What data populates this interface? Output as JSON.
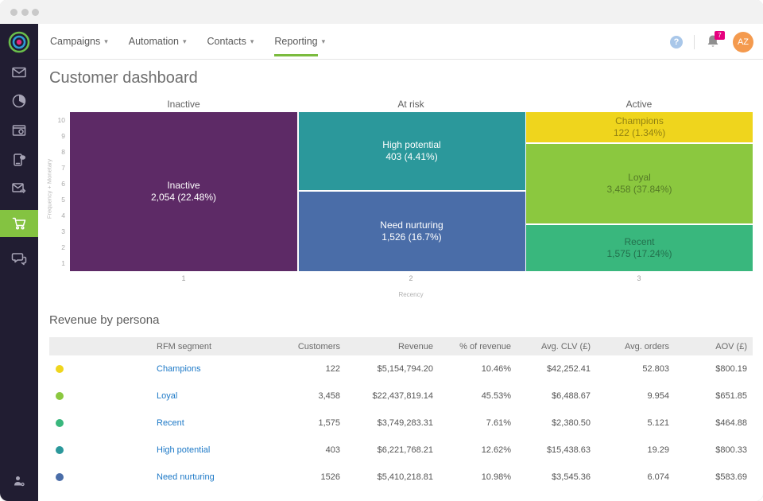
{
  "window": {
    "title_dots": 3
  },
  "sidebar": {
    "icons": [
      "brand-logo",
      "email-icon",
      "reports-icon",
      "pages-icon",
      "sms-icon",
      "transactional-email-icon",
      "commerce-icon",
      "chat-icon",
      "account-settings-icon"
    ],
    "active_icon": "commerce-icon"
  },
  "nav": {
    "items": [
      {
        "label": "Campaigns"
      },
      {
        "label": "Automation"
      },
      {
        "label": "Contacts"
      },
      {
        "label": "Reporting"
      }
    ],
    "active": "Reporting",
    "help_glyph": "?",
    "notification_count": "7",
    "avatar_initials": "AZ"
  },
  "page": {
    "title": "Customer dashboard"
  },
  "chart_data": {
    "type": "heatmap",
    "subtype": "rfm-segment-grid",
    "title": "",
    "xlabel": "Recency",
    "ylabel": "Frequency + Monetary",
    "column_headers": [
      "Inactive",
      "At risk",
      "Active"
    ],
    "x_ticks": [
      "1",
      "2",
      "3"
    ],
    "y_ticks": [
      "10",
      "9",
      "8",
      "7",
      "6",
      "5",
      "4",
      "3",
      "2",
      "1"
    ],
    "x_range": [
      1,
      3
    ],
    "y_range": [
      1,
      10
    ],
    "grid": false,
    "legend": "none",
    "segments": [
      {
        "name": "Inactive",
        "count": 2054,
        "percent": "22.48%",
        "label_line2": "2,054 (22.48%)",
        "color": "#5d2a66",
        "recency_column": 1
      },
      {
        "name": "High potential",
        "count": 403,
        "percent": "4.41%",
        "label_line2": "403 (4.41%)",
        "color": "#2b989b",
        "recency_column": 2
      },
      {
        "name": "Need nurturing",
        "count": 1526,
        "percent": "16.7%",
        "label_line2": "1,526 (16.7%)",
        "color": "#4a6da8",
        "recency_column": 2
      },
      {
        "name": "Champions",
        "count": 122,
        "percent": "1.34%",
        "label_line2": "122 (1.34%)",
        "color": "#efd51d",
        "recency_column": 3
      },
      {
        "name": "Loyal",
        "count": 3458,
        "percent": "37.84%",
        "label_line2": "3,458 (37.84%)",
        "color": "#8bc83f",
        "recency_column": 3
      },
      {
        "name": "Recent",
        "count": 1575,
        "percent": "17.24%",
        "label_line2": "1,575 (17.24%)",
        "color": "#39b77d",
        "recency_column": 3
      }
    ]
  },
  "table": {
    "title": "Revenue by persona",
    "columns": [
      "RFM segment",
      "Customers",
      "Revenue",
      "% of revenue",
      "Avg. CLV (£)",
      "Avg. orders",
      "AOV (£)"
    ],
    "rows": [
      {
        "dot_color": "#efd51d",
        "segment": "Champions",
        "customers": "122",
        "revenue": "$5,154,794.20",
        "pct_revenue": "10.46%",
        "avg_clv": "$42,252.41",
        "avg_orders": "52.803",
        "aov": "$800.19"
      },
      {
        "dot_color": "#8bc83f",
        "segment": "Loyal",
        "customers": "3,458",
        "revenue": "$22,437,819.14",
        "pct_revenue": "45.53%",
        "avg_clv": "$6,488.67",
        "avg_orders": "9.954",
        "aov": "$651.85"
      },
      {
        "dot_color": "#39b77d",
        "segment": "Recent",
        "customers": "1,575",
        "revenue": "$3,749,283.31",
        "pct_revenue": "7.61%",
        "avg_clv": "$2,380.50",
        "avg_orders": "5.121",
        "aov": "$464.88"
      },
      {
        "dot_color": "#2b989b",
        "segment": "High potential",
        "customers": "403",
        "revenue": "$6,221,768.21",
        "pct_revenue": "12.62%",
        "avg_clv": "$15,438.63",
        "avg_orders": "19.29",
        "aov": "$800.33"
      },
      {
        "dot_color": "#4a6da8",
        "segment": "Need nurturing",
        "customers": "1526",
        "revenue": "$5,410,218.81",
        "pct_revenue": "10.98%",
        "avg_clv": "$3,545.36",
        "avg_orders": "6.074",
        "aov": "$583.69"
      }
    ]
  },
  "colors": {
    "accent_green": "#84c341",
    "link_blue": "#1d79c7",
    "badge_pink": "#e6007e",
    "avatar_orange": "#f49a4e",
    "sidebar_bg": "#211d32"
  }
}
